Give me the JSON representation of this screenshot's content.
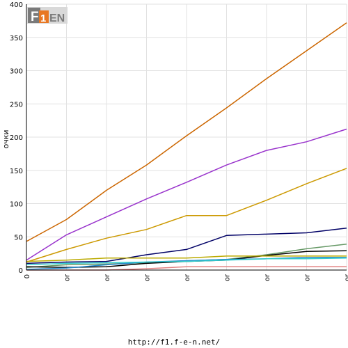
{
  "logo": {
    "text": "F1EN",
    "colors": {
      "dark": "#7a7a7a",
      "accent": "#e87722",
      "light": "#d9d9d9"
    }
  },
  "footer": {
    "url": "http://f1.f-e-n.net/"
  },
  "chart_data": {
    "type": "line",
    "title": "",
    "xlabel": "",
    "ylabel": "очки",
    "ylim": [
      0,
      400
    ],
    "yticks": [
      0,
      50,
      100,
      150,
      200,
      250,
      300,
      350,
      400
    ],
    "grid": true,
    "legend": "none",
    "categories": [
      "0",
      "or",
      "or",
      "or",
      "or",
      "or",
      "or",
      "or",
      "or"
    ],
    "series": [
      {
        "color": "#cc6600",
        "values": [
          43,
          76,
          120,
          158,
          202,
          244,
          288,
          330,
          372
        ]
      },
      {
        "color": "#9933cc",
        "values": [
          15,
          53,
          80,
          107,
          132,
          158,
          180,
          193,
          212
        ]
      },
      {
        "color": "#cc9900",
        "values": [
          12,
          31,
          48,
          61,
          82,
          82,
          105,
          130,
          153
        ]
      },
      {
        "color": "#000066",
        "values": [
          10,
          12,
          13,
          23,
          31,
          52,
          54,
          56,
          63
        ]
      },
      {
        "color": "#669966",
        "values": [
          4,
          8,
          9,
          11,
          14,
          16,
          23,
          32,
          39
        ]
      },
      {
        "color": "#000000",
        "values": [
          5,
          4,
          5,
          10,
          13,
          15,
          22,
          28,
          29
        ]
      },
      {
        "color": "#bbaa00",
        "values": [
          13,
          15,
          18,
          18,
          18,
          21,
          21,
          21,
          21
        ]
      },
      {
        "color": "#2288cc",
        "values": [
          1,
          3,
          8,
          12,
          14,
          16,
          17,
          19,
          19
        ]
      },
      {
        "color": "#33cccc",
        "values": [
          8,
          10,
          11,
          12,
          13,
          15,
          17,
          17,
          18
        ]
      },
      {
        "color": "#e08080",
        "values": [
          0,
          0,
          0,
          2,
          5,
          5,
          5,
          5,
          5
        ]
      }
    ]
  }
}
